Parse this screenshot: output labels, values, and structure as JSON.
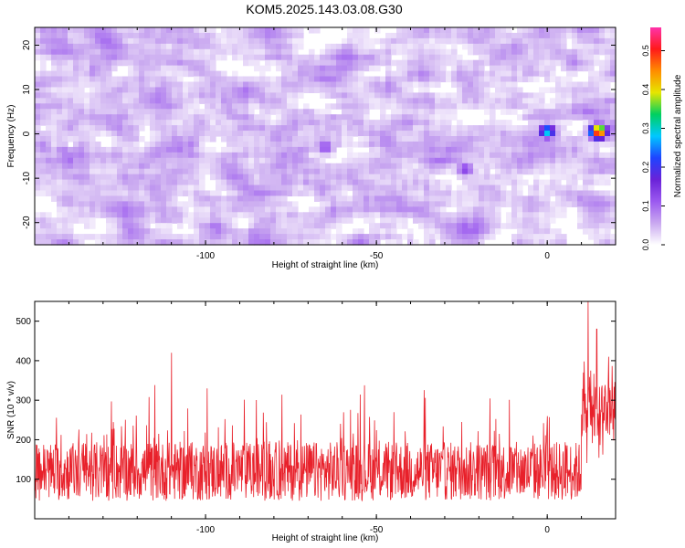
{
  "title": "KOM5.2025.143.03.08.G30",
  "colors": {
    "line": "#e8202a",
    "spectrogram_scale": [
      "#ffffff",
      "#c9a8f0",
      "#9b59f0",
      "#6a22d8",
      "#1e44ff",
      "#00c8ff",
      "#00d060",
      "#e6e600",
      "#ff8c00",
      "#ff1a1a",
      "#ff33aa"
    ]
  },
  "chart_data": [
    {
      "type": "heatmap",
      "xlabel": "Height of straight line (km)",
      "ylabel": "Frequency (Hz)",
      "colorbar_label": "Normalized spectral amplitude",
      "xlim": [
        -150,
        20
      ],
      "ylim": [
        -25,
        24
      ],
      "colorbar_lim": [
        0.0,
        0.56
      ],
      "xticks": [
        -100,
        -50,
        0
      ],
      "xtick_labels": [
        "-100",
        "-50",
        "0"
      ],
      "yticks": [
        -20,
        -10,
        0,
        10,
        20
      ],
      "ytick_labels": [
        "-20",
        "-10",
        "0",
        "10",
        "20"
      ],
      "colorbar_ticks": [
        0.0,
        0.1,
        0.2,
        0.3,
        0.4,
        0.5
      ],
      "colorbar_tick_labels": [
        "0.0",
        "0.1",
        "0.2",
        "0.3",
        "0.4",
        "0.5"
      ],
      "background_amplitude_range": [
        0.0,
        0.12
      ],
      "peaks": [
        {
          "x": 0,
          "y": 0.5,
          "value": 0.3
        },
        {
          "x": 15,
          "y": 0.5,
          "value": 0.55
        },
        {
          "x": -65,
          "y": -3,
          "value": 0.13
        },
        {
          "x": -24,
          "y": -8,
          "value": 0.14
        }
      ]
    },
    {
      "type": "line",
      "xlabel": "Height of straight line (km)",
      "ylabel": "SNR (10 * v/v)",
      "xlim": [
        -150,
        20
      ],
      "ylim": [
        0,
        550
      ],
      "xticks": [
        -100,
        -50,
        0
      ],
      "xtick_labels": [
        "-100",
        "-50",
        "0"
      ],
      "yticks": [
        100,
        200,
        300,
        400,
        500
      ],
      "ytick_labels": [
        "100",
        "200",
        "300",
        "400",
        "500"
      ],
      "baseline_snr": 120,
      "noise_range": [
        20,
        340
      ],
      "spikes": [
        {
          "x": -110,
          "y": 420
        },
        {
          "x": 12,
          "y": 550
        },
        {
          "x": 14.5,
          "y": 480
        },
        {
          "x": 18,
          "y": 410
        }
      ]
    }
  ]
}
